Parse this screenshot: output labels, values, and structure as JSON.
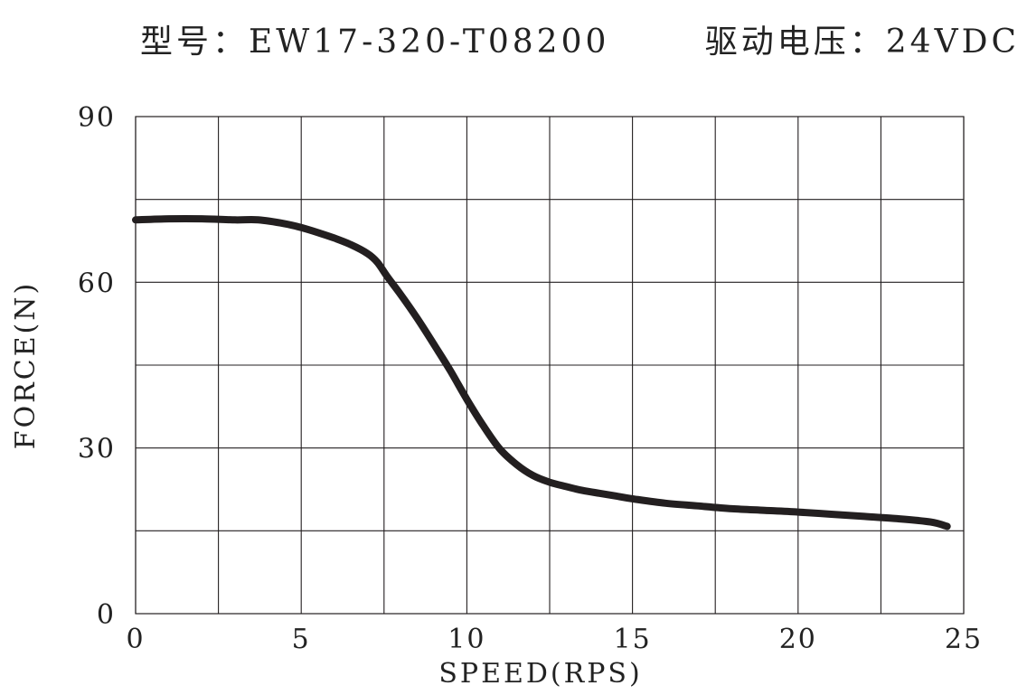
{
  "header": {
    "model": "型号：EW17-320-T08200",
    "voltage": "驱动电压：24VDC"
  },
  "colors": {
    "curve": "#231f20",
    "grid": "#231f20",
    "text": "#222222",
    "background": "#ffffff"
  },
  "chart_data": {
    "type": "line",
    "title": "型号：EW17-320-T08200",
    "subtitle": "驱动电压：24VDC",
    "xlabel": "SPEED(RPS)",
    "ylabel": "FORCE(N)",
    "xlim": [
      0,
      25
    ],
    "ylim": [
      0,
      90
    ],
    "xticks": [
      0,
      5,
      10,
      15,
      20,
      25
    ],
    "yticks": [
      0,
      30,
      60,
      90
    ],
    "x_gridlines": [
      0,
      2.5,
      5,
      7.5,
      10,
      12.5,
      15,
      17.5,
      20,
      22.5,
      25
    ],
    "y_gridlines": [
      0,
      15,
      30,
      45,
      60,
      75,
      90
    ],
    "grid": true,
    "legend": "none",
    "series": [
      {
        "x": [
          0,
          1,
          2,
          3,
          3.7,
          4.5,
          5,
          5.5,
          6,
          6.5,
          7,
          7.3,
          7.6,
          8,
          8.5,
          9,
          9.5,
          10,
          10.5,
          11,
          11.5,
          12,
          12.5,
          13,
          13.5,
          14,
          14.5,
          15,
          16,
          17,
          18,
          19,
          20,
          21,
          22,
          23,
          24,
          24.5
        ],
        "y": [
          71.3,
          71.5,
          71.5,
          71.3,
          71.3,
          70.6,
          69.9,
          69.0,
          68.0,
          66.8,
          65.2,
          63.6,
          61.0,
          57.8,
          53.5,
          48.8,
          44.0,
          38.8,
          34.0,
          29.8,
          27.0,
          25.0,
          23.8,
          23.0,
          22.3,
          21.8,
          21.3,
          20.8,
          20.0,
          19.5,
          19.0,
          18.7,
          18.4,
          18.0,
          17.6,
          17.2,
          16.6,
          15.8
        ]
      }
    ]
  }
}
